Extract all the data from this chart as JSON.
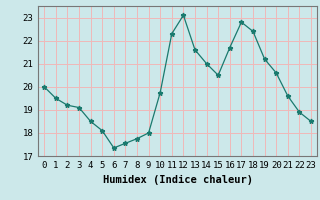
{
  "x": [
    0,
    1,
    2,
    3,
    4,
    5,
    6,
    7,
    8,
    9,
    10,
    11,
    12,
    13,
    14,
    15,
    16,
    17,
    18,
    19,
    20,
    21,
    22,
    23
  ],
  "y": [
    20.0,
    19.5,
    19.2,
    19.1,
    18.5,
    18.1,
    17.35,
    17.55,
    17.75,
    18.0,
    19.75,
    22.3,
    23.1,
    21.6,
    21.0,
    20.5,
    21.7,
    22.8,
    22.4,
    21.2,
    20.6,
    19.6,
    18.9,
    18.5
  ],
  "xlabel": "Humidex (Indice chaleur)",
  "xlim": [
    -0.5,
    23.5
  ],
  "ylim": [
    17,
    23.5
  ],
  "yticks": [
    17,
    18,
    19,
    20,
    21,
    22,
    23
  ],
  "xticks": [
    0,
    1,
    2,
    3,
    4,
    5,
    6,
    7,
    8,
    9,
    10,
    11,
    12,
    13,
    14,
    15,
    16,
    17,
    18,
    19,
    20,
    21,
    22,
    23
  ],
  "line_color": "#1a7a6e",
  "marker": "*",
  "bg_color": "#cce8ea",
  "grid_color": "#f0b8b8",
  "tick_fontsize": 6.5,
  "xlabel_fontsize": 7.5
}
